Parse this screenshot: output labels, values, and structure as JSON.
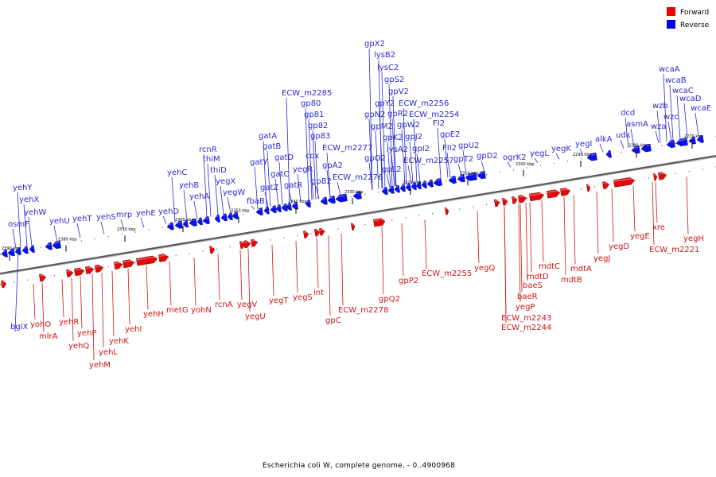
{
  "caption": "Escherichia coli W, complete genome. - 0..4900968",
  "legend": [
    {
      "label": "Forward",
      "color": "#ee0000"
    },
    {
      "label": "Reverse",
      "color": "#0000ee"
    }
  ],
  "ticks": [
    "2390 kbp",
    "2380 kbp",
    "2370 kbp",
    "2360 kbp",
    "2350 kbp",
    "2340 kbp",
    "2330 kbp",
    "2320 kbp",
    "2310 kbp",
    "2300 kbp",
    "2290 kbp",
    "2280 kbp",
    "2270 kbp"
  ],
  "reverse_genes": [
    "bglX",
    "osmF",
    "yehW",
    "yehX",
    "yehY",
    "yehU",
    "yehT",
    "yehS",
    "mrp",
    "yehE",
    "yehD",
    "yehC",
    "yehB",
    "yehA",
    "rcnR",
    "thiM",
    "thiD",
    "yegX",
    "yegW",
    "fbaB",
    "gatY",
    "gatZ",
    "gatA",
    "gatB",
    "gatC",
    "gatD",
    "gatR",
    "yegR",
    "cox",
    "gp83",
    "gp82",
    "gp81",
    "gp80",
    "ECW_m2285",
    "gpB2",
    "gpA2",
    "ECW_m2277",
    "ECW_m2276",
    "gpO2",
    "gpN2",
    "gpM2",
    "gpY2",
    "gpK2",
    "gpR2",
    "lysA2",
    "gpX2",
    "lysB2",
    "lysC2",
    "gpL2",
    "gpS2",
    "gpV2",
    "gpW2",
    "gpJ2",
    "gpI2",
    "ECW_m2256",
    "ECW_m2254",
    "ECW_m2257",
    "FI2",
    "FII2",
    "gpE2",
    "gpT2",
    "gpU2",
    "gpD2",
    "ogrK2",
    "yegL",
    "yegK",
    "yegI",
    "alkA",
    "udk",
    "dcd",
    "asmA",
    "wza",
    "wzb",
    "wzc",
    "wcaA",
    "wcaB",
    "wcaC",
    "wcaD",
    "wcaE"
  ],
  "forward_genes": [
    "yohO",
    "mlrA",
    "yehR",
    "yehQ",
    "yehP",
    "yehM",
    "yehL",
    "yehK",
    "yehI",
    "yehH",
    "metG",
    "yohN",
    "rcnA",
    "yegV",
    "yegU",
    "yegT",
    "yegS",
    "int",
    "gpC",
    "ECW_m2278",
    "gpQ2",
    "gpP2",
    "ECW_m2255",
    "yegQ",
    "baeR",
    "baeS",
    "yegP",
    "mdtD",
    "ECW_m2243",
    "ECW_m2244",
    "mdtC",
    "mdtB",
    "mdtA",
    "yegJ",
    "yegD",
    "yegE",
    "xre",
    "ECW_m2221",
    "yegH"
  ]
}
